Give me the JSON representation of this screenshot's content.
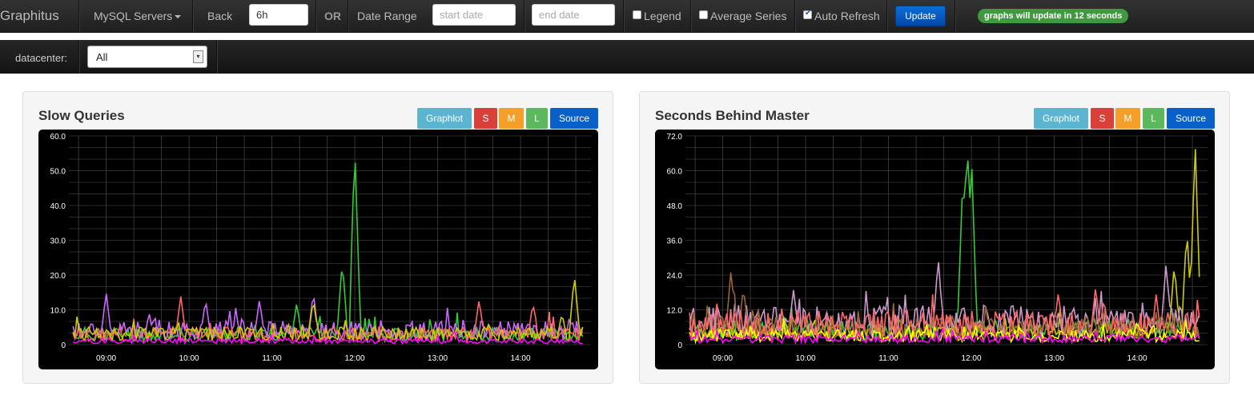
{
  "navbar": {
    "brand": "Graphitus",
    "dashboard_menu": "MySQL Servers",
    "back_label": "Back",
    "back_value": "6h",
    "or_label": "OR",
    "date_range_label": "Date Range",
    "start_placeholder": "start date",
    "end_placeholder": "end date",
    "legend_label": "Legend",
    "legend_checked": false,
    "average_label": "Average Series",
    "average_checked": false,
    "auto_refresh_label": "Auto Refresh",
    "auto_refresh_checked": true,
    "update_button": "Update",
    "status": "graphs will update in 12 seconds"
  },
  "filters": {
    "datacenter_label": "datacenter:",
    "datacenter_value": "All"
  },
  "panels": [
    {
      "title": "Slow Queries",
      "buttons": [
        "Graphlot",
        "S",
        "M",
        "L",
        "Source"
      ]
    },
    {
      "title": "Seconds Behind Master",
      "buttons": [
        "Graphlot",
        "S",
        "M",
        "L",
        "Source"
      ]
    }
  ],
  "colors": {
    "series": [
      "#ff66cc",
      "#cc66ff",
      "#33cc33",
      "#cccc00",
      "#ff6666",
      "#ffff00",
      "#ff00ff",
      "#996633",
      "#aaaaaa",
      "#66ccff"
    ],
    "grid": "#555555",
    "axis_text": "#ffffff",
    "update_button": "#0a6fd9",
    "status_badge": "#3f9a3f"
  },
  "chart_data": [
    {
      "type": "line",
      "title": "Slow Queries",
      "x_ticks": [
        "09:00",
        "10:00",
        "11:00",
        "12:00",
        "13:00",
        "14:00"
      ],
      "y_ticks": [
        "0",
        "10.0",
        "20.0",
        "30.0",
        "40.0",
        "50.0",
        "60.0"
      ],
      "ylim": [
        0,
        60
      ],
      "grid": true,
      "series": [
        {
          "color": "#33cc33",
          "peaks": [
            [
              12.0,
              57
            ],
            [
              11.85,
              24
            ],
            [
              11.3,
              12
            ]
          ],
          "baseline": 3
        },
        {
          "color": "#cc66ff",
          "peaks": [
            [
              9.0,
              15
            ],
            [
              10.2,
              13
            ],
            [
              10.85,
              13
            ],
            [
              11.5,
              15
            ]
          ],
          "baseline": 4
        },
        {
          "color": "#ff6666",
          "peaks": [
            [
              9.9,
              14
            ],
            [
              13.5,
              13
            ],
            [
              14.15,
              12
            ]
          ],
          "baseline": 3
        },
        {
          "color": "#cccc00",
          "peaks": [
            [
              14.65,
              20
            ],
            [
              11.5,
              13
            ],
            [
              14.5,
              9
            ]
          ],
          "baseline": 3
        },
        {
          "color": "#ff00ff",
          "peaks": [
            [
              13.2,
              4
            ]
          ],
          "baseline": 1
        }
      ]
    },
    {
      "type": "line",
      "title": "Seconds Behind Master",
      "x_ticks": [
        "09:00",
        "10:00",
        "11:00",
        "12:00",
        "13:00",
        "14:00"
      ],
      "y_ticks": [
        "0",
        "12.0",
        "24.0",
        "36.0",
        "48.0",
        "60.0",
        "72.0"
      ],
      "ylim": [
        0,
        72
      ],
      "grid": true,
      "series": [
        {
          "color": "#33cc33",
          "peaks": [
            [
              11.95,
              72
            ],
            [
              11.9,
              60
            ],
            [
              12.0,
              66
            ]
          ],
          "baseline": 5
        },
        {
          "color": "#cccc00",
          "peaks": [
            [
              14.7,
              70
            ],
            [
              14.6,
              40
            ],
            [
              14.45,
              28
            ]
          ],
          "baseline": 4
        },
        {
          "color": "#cc99cc",
          "peaks": [
            [
              11.6,
              30
            ],
            [
              14.35,
              28
            ]
          ],
          "baseline": 8
        },
        {
          "color": "#996633",
          "peaks": [
            [
              9.1,
              26
            ],
            [
              9.25,
              20
            ]
          ],
          "baseline": 6
        },
        {
          "color": "#ff6666",
          "peaks": [
            [
              13.05,
              18
            ],
            [
              13.5,
              20
            ],
            [
              13.6,
              16
            ]
          ],
          "baseline": 7
        },
        {
          "color": "#ffff00",
          "peaks": [
            [
              14.0,
              8
            ]
          ],
          "baseline": 3
        },
        {
          "color": "#ff00ff",
          "peaks": [
            [
              12.5,
              4
            ]
          ],
          "baseline": 2
        }
      ]
    }
  ]
}
